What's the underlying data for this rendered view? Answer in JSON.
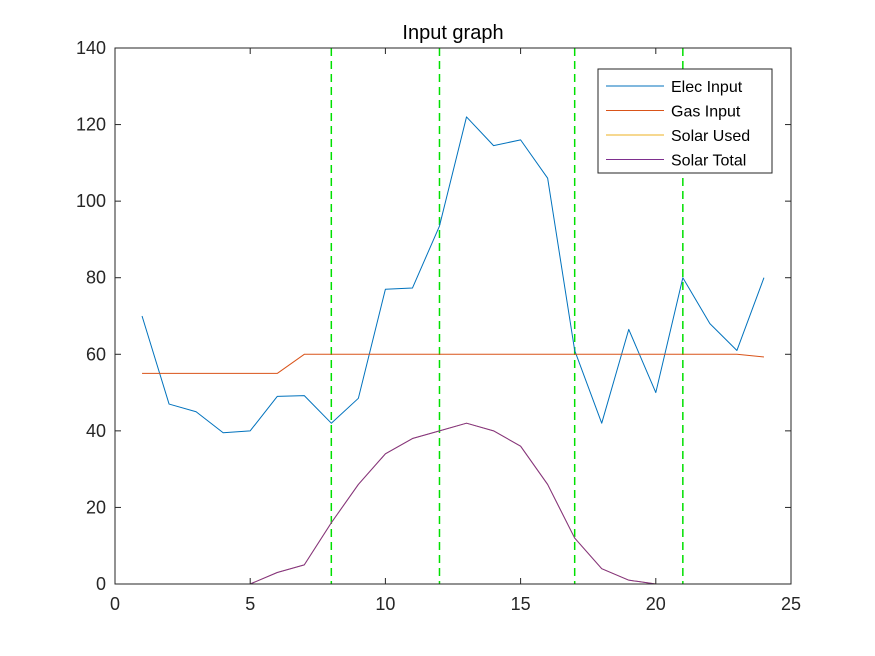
{
  "chart_data": {
    "type": "line",
    "title": "Input graph",
    "xlabel": "",
    "ylabel": "",
    "xlim": [
      0,
      25
    ],
    "ylim": [
      0,
      140
    ],
    "x_ticks": [
      0,
      5,
      10,
      15,
      20,
      25
    ],
    "y_ticks": [
      0,
      20,
      40,
      60,
      80,
      100,
      120,
      140
    ],
    "grid": false,
    "legend_position": "top-right",
    "x": [
      1,
      2,
      3,
      4,
      5,
      6,
      7,
      8,
      9,
      10,
      11,
      12,
      13,
      14,
      15,
      16,
      17,
      18,
      19,
      20,
      21,
      22,
      23,
      24
    ],
    "series": [
      {
        "name": "Elec Input",
        "color": "#0072BD",
        "values": [
          70,
          47,
          45,
          39.5,
          40,
          49,
          49.2,
          42,
          48.5,
          77,
          77.3,
          93.5,
          122,
          114.5,
          116,
          106,
          61,
          42,
          66.5,
          50,
          80,
          68,
          61,
          80
        ]
      },
      {
        "name": "Gas Input",
        "color": "#D95319",
        "values": [
          55,
          55,
          55,
          55,
          55,
          55,
          60,
          60,
          60,
          60,
          60,
          60,
          60,
          60,
          60,
          60,
          60,
          60,
          60,
          60,
          60,
          60,
          60,
          59.3
        ]
      },
      {
        "name": "Solar Used",
        "color": "#EDB120",
        "values": [
          0,
          0,
          0,
          0,
          0,
          3,
          5,
          16,
          26,
          34,
          38,
          40,
          42,
          40,
          36,
          26,
          12,
          4,
          1,
          0,
          0,
          0,
          0,
          0
        ]
      },
      {
        "name": "Solar Total",
        "color": "#7E2F8E",
        "values": [
          0,
          0,
          0,
          0,
          0,
          3,
          5,
          16,
          26,
          34,
          38,
          40,
          42,
          40,
          36,
          26,
          12,
          4,
          1,
          0,
          0,
          0,
          0,
          0
        ]
      }
    ],
    "vertical_lines": {
      "color": "#00E000",
      "style": "dashed",
      "x": [
        8,
        12,
        17,
        21
      ]
    }
  }
}
